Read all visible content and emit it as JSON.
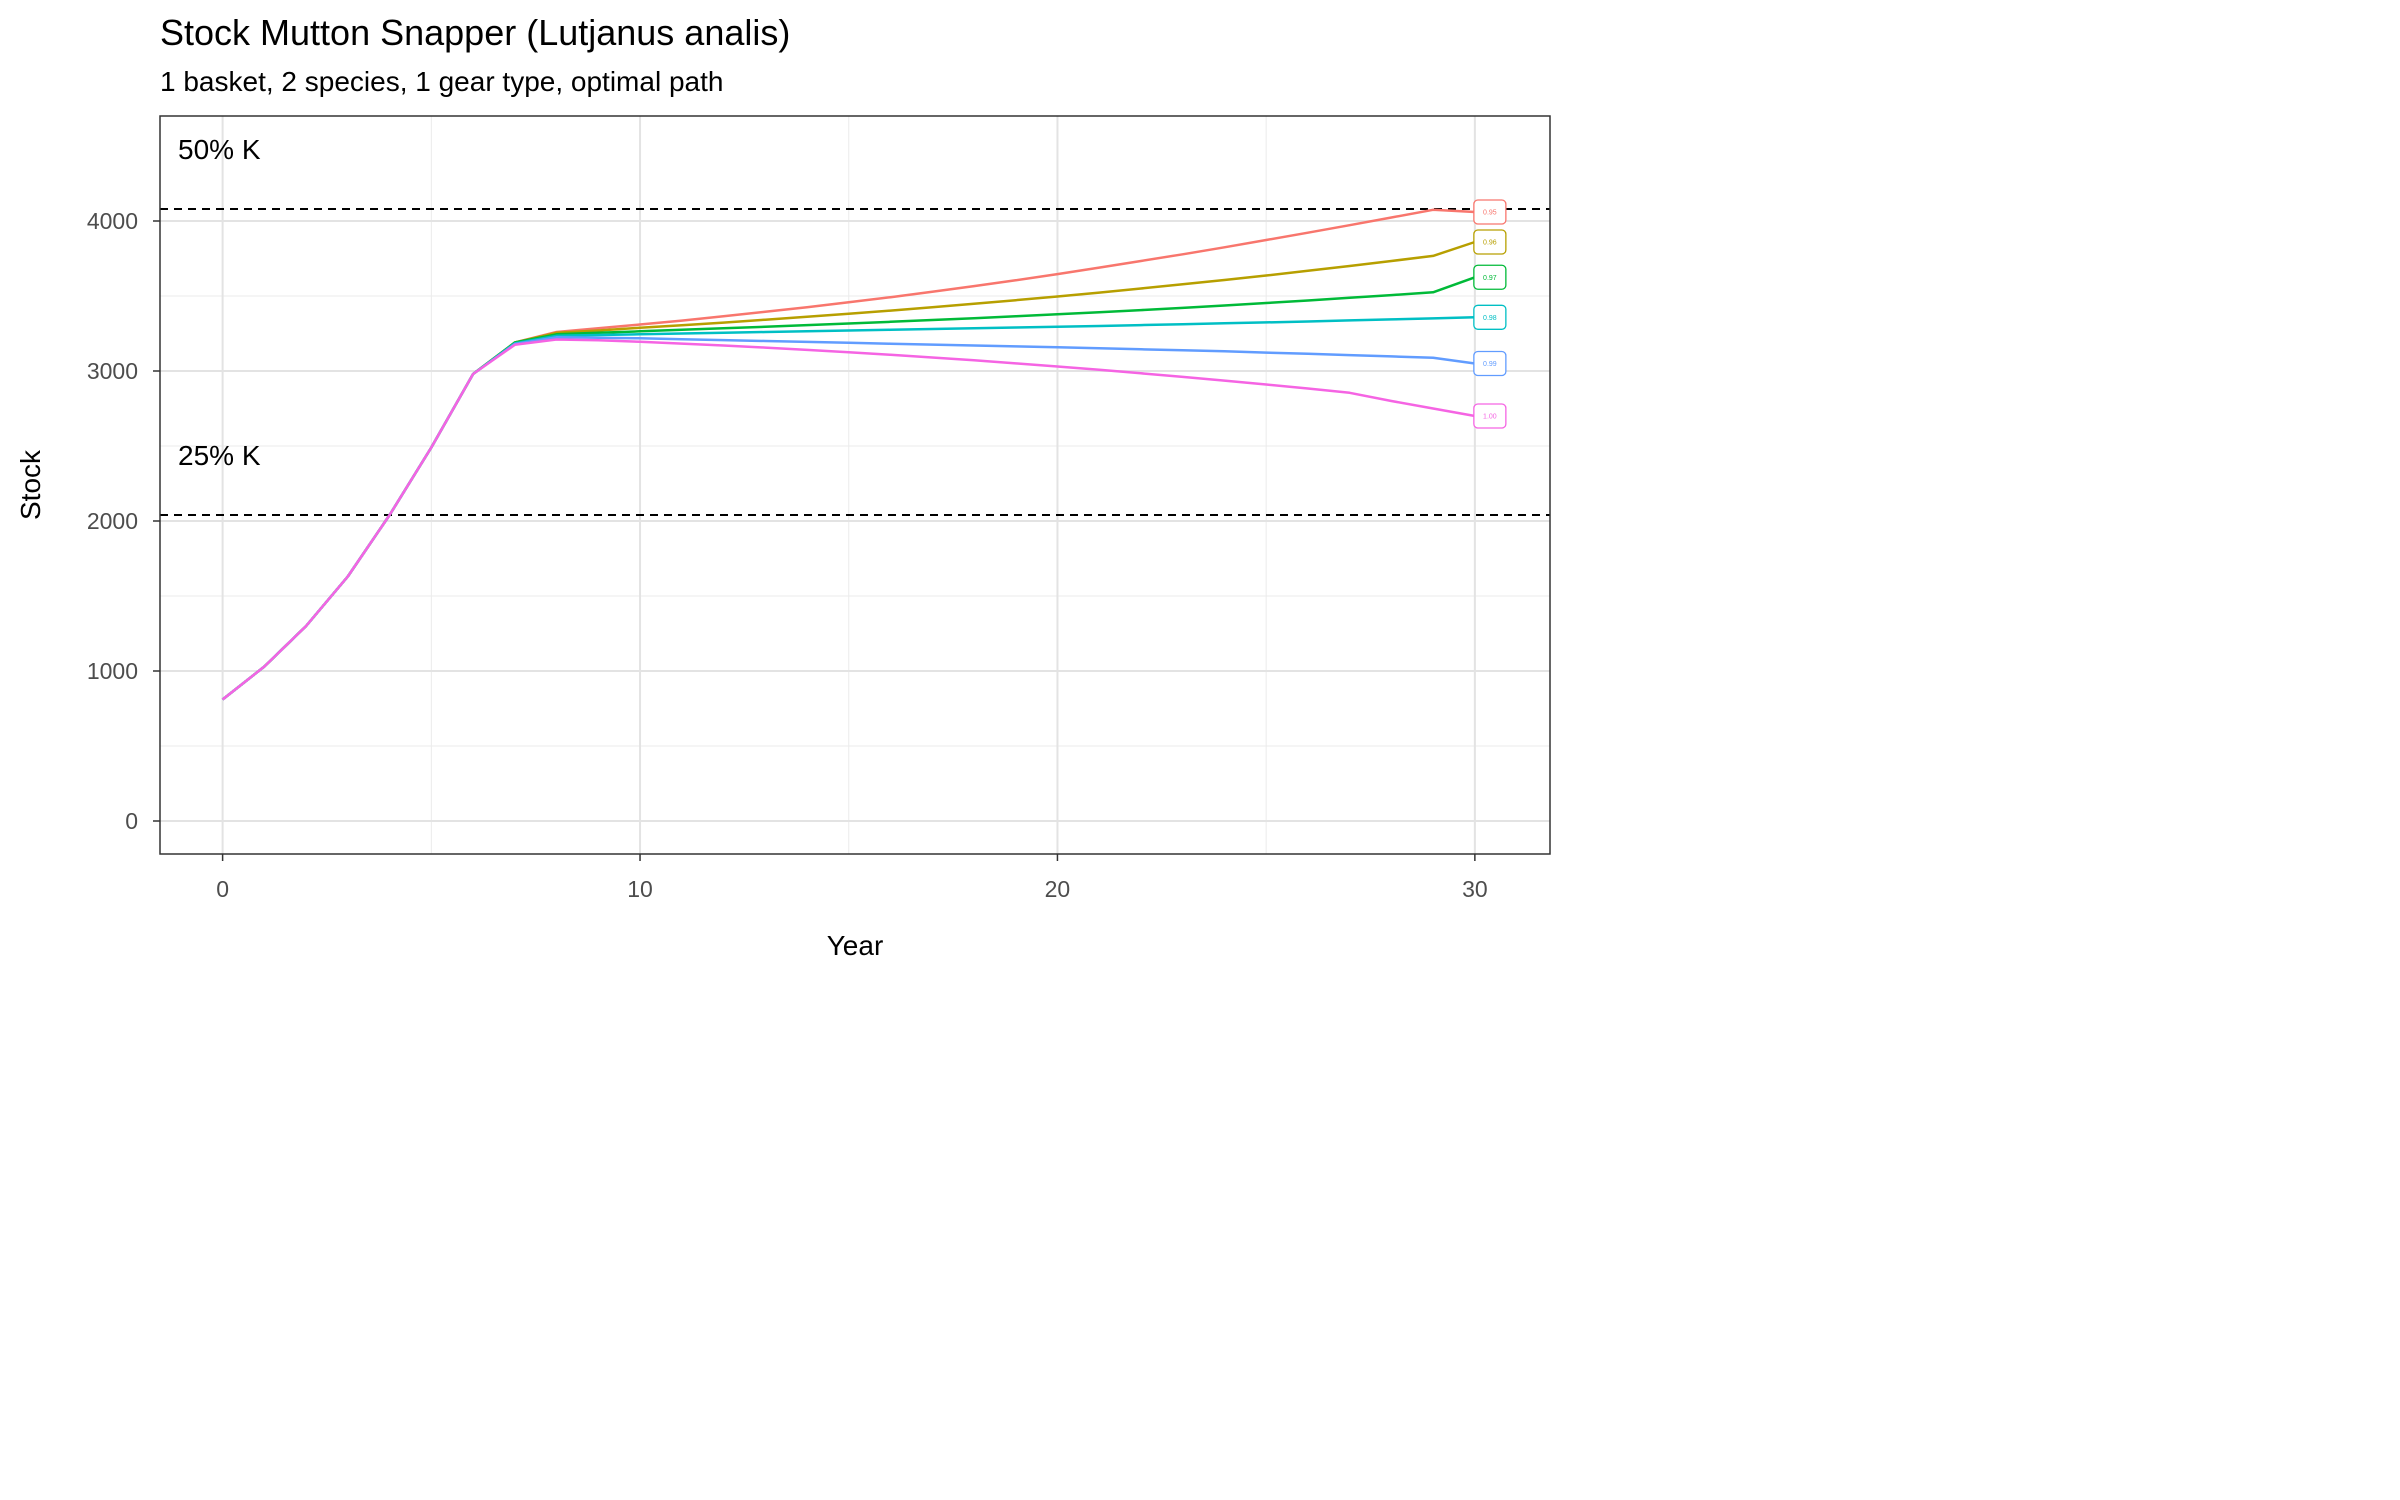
{
  "chart_data": {
    "type": "line",
    "title": "Stock Mutton Snapper (Lutjanus analis)",
    "subtitle": "1 basket, 2 species, 1 gear type, optimal path",
    "xlabel": "Year",
    "ylabel": "Stock",
    "xlim": [
      -1.5,
      31.8
    ],
    "ylim": [
      -220,
      4700
    ],
    "x_ticks": [
      0,
      10,
      20,
      30
    ],
    "y_ticks": [
      0,
      1000,
      2000,
      3000,
      4000
    ],
    "grid": true,
    "legend": "none (labels at line ends)",
    "reference_lines": [
      {
        "label": "50% K",
        "y": 4080,
        "style": "dashed"
      },
      {
        "label": "25% K",
        "y": 2040,
        "style": "dashed"
      }
    ],
    "x": [
      0,
      1,
      2,
      3,
      4,
      5,
      6,
      7,
      8,
      9,
      10,
      11,
      12,
      13,
      14,
      15,
      16,
      17,
      18,
      19,
      20,
      21,
      22,
      23,
      24,
      25,
      26,
      27,
      28,
      29,
      30
    ],
    "series": [
      {
        "name": "0.95",
        "color": "#F8766D",
        "values": [
          810,
          1030,
          1300,
          1630,
          2040,
          2490,
          2980,
          3190,
          3260,
          3285,
          3310,
          3336,
          3365,
          3395,
          3425,
          3458,
          3492,
          3528,
          3566,
          3605,
          3646,
          3689,
          3733,
          3778,
          3825,
          3873,
          3922,
          3972,
          4023,
          4075,
          4060
        ]
      },
      {
        "name": "0.96",
        "color": "#B79F00",
        "values": [
          810,
          1030,
          1300,
          1630,
          2040,
          2490,
          2980,
          3190,
          3255,
          3270,
          3288,
          3305,
          3323,
          3342,
          3362,
          3382,
          3403,
          3425,
          3448,
          3472,
          3497,
          3523,
          3550,
          3578,
          3607,
          3637,
          3668,
          3700,
          3733,
          3767,
          3860
        ]
      },
      {
        "name": "0.97",
        "color": "#00BA38",
        "values": [
          810,
          1030,
          1300,
          1630,
          2040,
          2490,
          2980,
          3190,
          3245,
          3255,
          3265,
          3275,
          3285,
          3295,
          3306,
          3317,
          3328,
          3340,
          3352,
          3365,
          3378,
          3392,
          3406,
          3421,
          3437,
          3453,
          3470,
          3488,
          3506,
          3525,
          3625
        ]
      },
      {
        "name": "0.98",
        "color": "#00BFC4",
        "values": [
          810,
          1030,
          1300,
          1630,
          2040,
          2490,
          2980,
          3185,
          3235,
          3240,
          3245,
          3250,
          3255,
          3260,
          3265,
          3270,
          3275,
          3280,
          3285,
          3290,
          3295,
          3300,
          3306,
          3312,
          3318,
          3324,
          3330,
          3337,
          3344,
          3351,
          3358
        ]
      },
      {
        "name": "0.99",
        "color": "#619CFF",
        "values": [
          810,
          1030,
          1300,
          1630,
          2040,
          2490,
          2980,
          3180,
          3225,
          3222,
          3218,
          3212,
          3206,
          3200,
          3194,
          3188,
          3182,
          3176,
          3170,
          3164,
          3158,
          3152,
          3145,
          3138,
          3131,
          3123,
          3115,
          3106,
          3097,
          3088,
          3050
        ]
      },
      {
        "name": "1.00",
        "color": "#F564E3",
        "values": [
          810,
          1030,
          1300,
          1630,
          2040,
          2490,
          2980,
          3175,
          3210,
          3205,
          3195,
          3183,
          3170,
          3156,
          3141,
          3125,
          3108,
          3090,
          3071,
          3051,
          3030,
          3008,
          2985,
          2961,
          2936,
          2910,
          2883,
          2855,
          2800,
          2750,
          2700
        ]
      }
    ]
  }
}
